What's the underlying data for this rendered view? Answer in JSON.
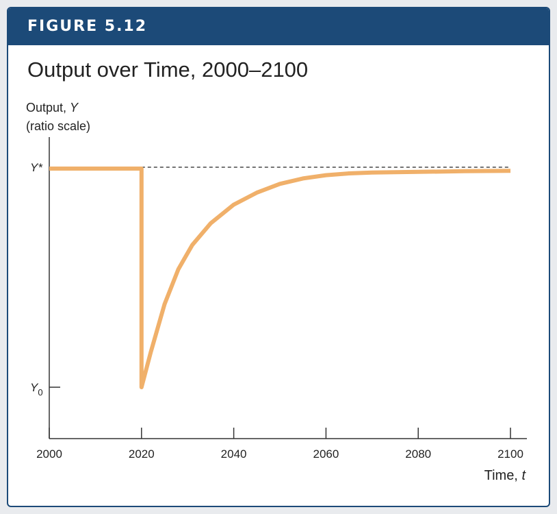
{
  "figure_label": "FIGURE 5.12",
  "chart_data": {
    "type": "line",
    "title": "Output over Time, 2000–2100",
    "ylabel_line1": "Output, ",
    "ylabel_var": "Y",
    "ylabel_line2": "(ratio scale)",
    "xlabel_text": "Time, ",
    "xlabel_var": "t",
    "x_ticks": [
      2000,
      2020,
      2040,
      2060,
      2080,
      2100
    ],
    "xlim": [
      2000,
      2100
    ],
    "y_levels": {
      "y_star": {
        "label": "Y*",
        "value": 1.0
      },
      "y_zero": {
        "label_base": "Y",
        "label_sub": "0",
        "value": 0.0
      }
    },
    "reference_line": {
      "style": "dashed",
      "y": 1.0,
      "x_range": [
        2020,
        2100
      ]
    },
    "series": [
      {
        "color": "#f0b06a",
        "x": [
          2000,
          2020,
          2020,
          2022,
          2025,
          2028,
          2031,
          2035,
          2040,
          2045,
          2050,
          2055,
          2060,
          2065,
          2070,
          2080,
          2090,
          2100
        ],
        "y": [
          1.0,
          1.0,
          0.0,
          0.16,
          0.38,
          0.54,
          0.65,
          0.75,
          0.835,
          0.89,
          0.93,
          0.955,
          0.97,
          0.978,
          0.982,
          0.985,
          0.988,
          0.99
        ]
      }
    ],
    "grid": false,
    "legend": "none"
  }
}
